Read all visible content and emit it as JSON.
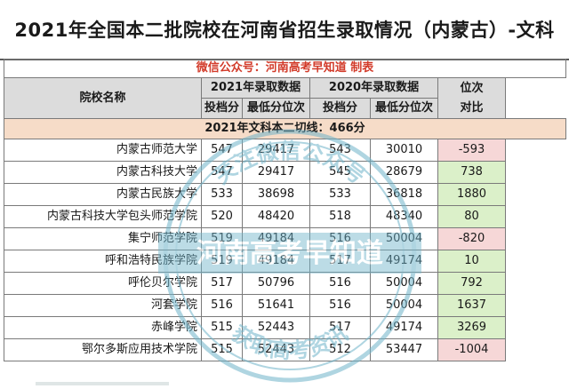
{
  "title": "2021年全国本二批院校在河南省招生录取情况（内蒙古）-文科",
  "subtitle": "微信公众号：河南高考早知道 制表",
  "headers": {
    "school": "院校名称",
    "year2021": "2021年录取数据",
    "year2020": "2020年录取数据",
    "diff": "位次对比",
    "score": "投档分",
    "min_rank": "最低分位次"
  },
  "cutoff_line": "2021年文科本二切线：466分",
  "rows": [
    {
      "school": "内蒙古师范大学",
      "s2021": "547",
      "r2021": "29417",
      "s2020": "543",
      "r2020": "30010",
      "diff": "-593"
    },
    {
      "school": "内蒙古科技大学",
      "s2021": "547",
      "r2021": "29417",
      "s2020": "545",
      "r2020": "28679",
      "diff": "738"
    },
    {
      "school": "内蒙古民族大学",
      "s2021": "533",
      "r2021": "38698",
      "s2020": "533",
      "r2020": "36818",
      "diff": "1880"
    },
    {
      "school": "内蒙古科技大学包头师范学院",
      "s2021": "520",
      "r2021": "48420",
      "s2020": "518",
      "r2020": "48340",
      "diff": "80"
    },
    {
      "school": "集宁师范学院",
      "s2021": "519",
      "r2021": "49184",
      "s2020": "516",
      "r2020": "50004",
      "diff": "-820"
    },
    {
      "school": "呼和浩特民族学院",
      "s2021": "519",
      "r2021": "49184",
      "s2020": "517",
      "r2020": "49174",
      "diff": "10"
    },
    {
      "school": "呼伦贝尔学院",
      "s2021": "517",
      "r2021": "50796",
      "s2020": "516",
      "r2020": "50004",
      "diff": "792"
    },
    {
      "school": "河套学院",
      "s2021": "516",
      "r2021": "51641",
      "s2020": "516",
      "r2020": "50004",
      "diff": "1637"
    },
    {
      "school": "赤峰学院",
      "s2021": "515",
      "r2021": "52443",
      "s2020": "517",
      "r2020": "49174",
      "diff": "3269"
    },
    {
      "school": "鄂尔多斯应用技术学院",
      "s2021": "515",
      "r2021": "52443",
      "s2020": "512",
      "r2020": "53447",
      "diff": "-1004"
    }
  ],
  "watermark_text": {
    "top": "关注微信公众号",
    "middle": "河南高考早知道",
    "bottom": "获取高考资讯"
  },
  "colors": {
    "positive": "#dbf0c9",
    "negative": "#f6d7d7",
    "header": "#dcdcdc",
    "cutoff": "#f6dcc8",
    "subtitle": "#d23b2a",
    "watermark": "#6fb3c9"
  }
}
